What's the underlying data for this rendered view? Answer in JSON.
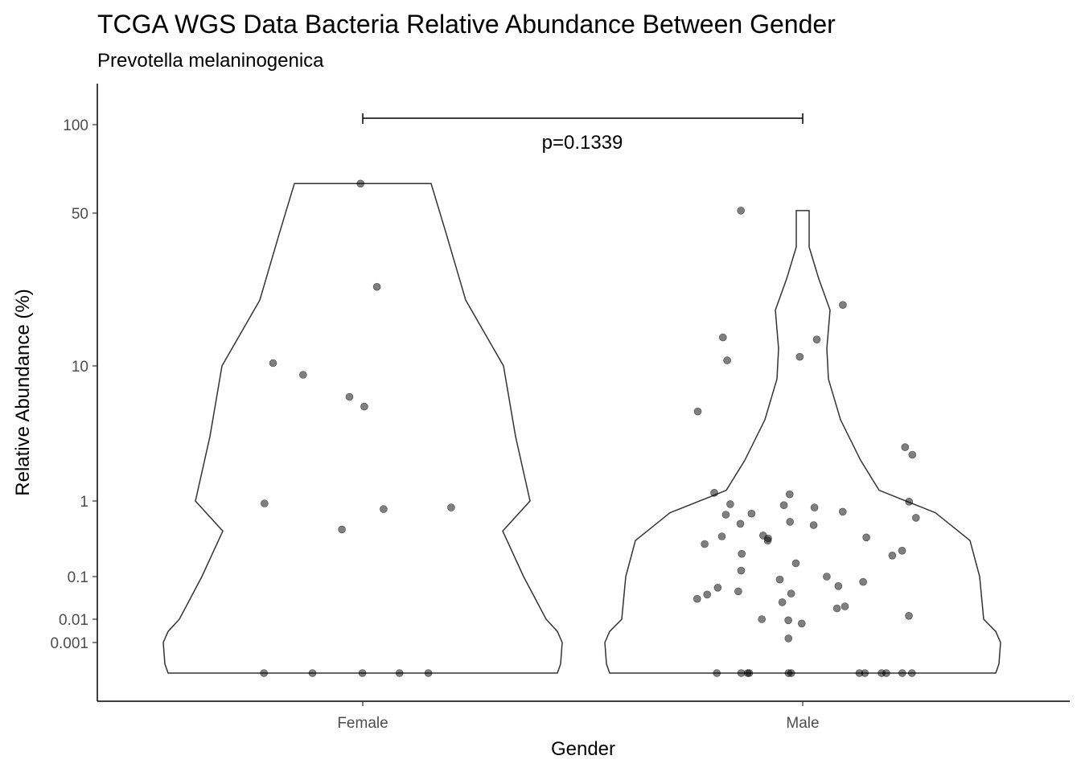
{
  "chart_data": {
    "type": "violin",
    "title": "TCGA WGS Data Bacteria Relative Abundance Between Gender",
    "subtitle": "Prevotella melaninogenica",
    "xlabel": "Gender",
    "ylabel": "Relative Abundance (%)",
    "y_scale": "pseudo-log",
    "y_ticks": [
      {
        "value": 0.001,
        "label": "0.001"
      },
      {
        "value": 0.01,
        "label": "0.01"
      },
      {
        "value": 0.1,
        "label": "0.1"
      },
      {
        "value": 1,
        "label": "1"
      },
      {
        "value": 10,
        "label": "10"
      },
      {
        "value": 50,
        "label": "50"
      },
      {
        "value": 100,
        "label": "100"
      }
    ],
    "categories": [
      "Female",
      "Male"
    ],
    "groups": [
      {
        "name": "Female",
        "values": [
          63,
          23,
          10.3,
          8.6,
          5.9,
          5.0,
          0.93,
          0.82,
          0.78,
          0.42,
          0,
          0,
          0,
          0,
          0
        ]
      },
      {
        "name": "Male",
        "values": [
          51,
          19,
          13.5,
          13.2,
          11.0,
          10.6,
          4.6,
          2.5,
          2.2,
          1.15,
          1.12,
          0.98,
          0.91,
          0.88,
          0.82,
          0.72,
          0.68,
          0.66,
          0.6,
          0.53,
          0.5,
          0.48,
          0.35,
          0.34,
          0.33,
          0.32,
          0.3,
          0.27,
          0.22,
          0.2,
          0.19,
          0.15,
          0.12,
          0.1,
          0.085,
          0.075,
          0.06,
          0.055,
          0.045,
          0.04,
          0.038,
          0.03,
          0.025,
          0.02,
          0.018,
          0.012,
          0.01,
          0.009,
          0.0065,
          0.0015,
          0,
          0,
          0,
          0,
          0,
          0,
          0,
          0,
          0,
          0,
          0,
          0
        ]
      }
    ],
    "comparison": {
      "groups": [
        "Female",
        "Male"
      ],
      "label": "p=0.1339"
    },
    "colors": {
      "point": "#000000",
      "outline": "#333333"
    }
  }
}
